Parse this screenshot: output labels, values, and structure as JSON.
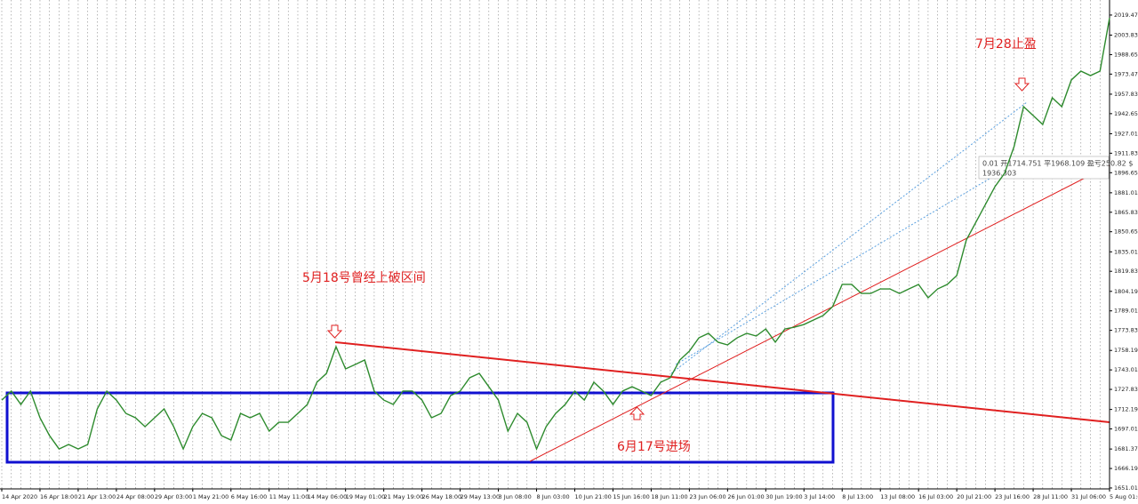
{
  "chart_data": {
    "type": "line",
    "categories": [
      "14 Apr 2020",
      null,
      null,
      null,
      "16 Apr 18:00",
      null,
      null,
      null,
      "21 Apr 13:00",
      null,
      null,
      null,
      "24 Apr 08:00",
      null,
      null,
      null,
      "29 Apr 03:00",
      null,
      null,
      null,
      "1 May 21:00",
      null,
      null,
      null,
      "6 May 16:00",
      null,
      null,
      null,
      "11 May 11:00",
      null,
      null,
      null,
      "14 May 06:00",
      null,
      null,
      null,
      "19 May 01:00",
      null,
      null,
      null,
      "21 May 19:00",
      null,
      null,
      null,
      "26 May 18:00",
      null,
      null,
      null,
      "29 May 13:00",
      null,
      null,
      null,
      "3 Jun 08:00",
      null,
      null,
      null,
      "8 Jun 03:00",
      null,
      null,
      null,
      "10 Jun 21:00",
      null,
      null,
      null,
      "15 Jun 16:00",
      null,
      null,
      null,
      "18 Jun 11:00",
      null,
      null,
      null,
      "23 Jun 06:00",
      null,
      null,
      null,
      "26 Jun 01:00",
      null,
      null,
      null,
      "30 Jun 19:00",
      null,
      null,
      null,
      "3 Jul 14:00",
      null,
      null,
      null,
      "8 Jul 13:00",
      null,
      null,
      null,
      "13 Jul 08:00",
      null,
      null,
      null,
      "16 Jul 03:00",
      null,
      null,
      null,
      "20 Jul 21:00",
      null,
      null,
      null,
      "23 Jul 16:00",
      null,
      null,
      null,
      "28 Jul 11:00",
      null,
      null,
      null,
      "31 Jul 06:00",
      null,
      null,
      null,
      "5 Aug 01:00"
    ],
    "series": [
      {
        "color": "#2e8b2e",
        "values": [
          1719.5,
          1726.5,
          1716.1,
          1726.5,
          1705.7,
          1691.8,
          1681.4,
          1684.9,
          1681.4,
          1684.9,
          1712.6,
          1726.5,
          1719.5,
          1709.1,
          1705.7,
          1698.8,
          1705.7,
          1712.6,
          1698.8,
          1681.4,
          1698.8,
          1709.1,
          1705.7,
          1691.8,
          1688.4,
          1709.1,
          1705.7,
          1709.1,
          1695.3,
          1702.2,
          1702.2,
          1709.1,
          1716.1,
          1733.4,
          1740.3,
          1761.1,
          1743.8,
          1747.2,
          1750.7,
          1726.5,
          1719.5,
          1716.1,
          1726.5,
          1726.5,
          1719.5,
          1705.7,
          1709.1,
          1723.0,
          1726.5,
          1736.9,
          1740.3,
          1729.9,
          1719.5,
          1695.3,
          1709.1,
          1702.2,
          1681.4,
          1698.8,
          1709.1,
          1716.1,
          1726.5,
          1719.5,
          1733.4,
          1726.5,
          1716.1,
          1726.5,
          1729.9,
          1726.5,
          1723.0,
          1733.4,
          1736.9,
          1750.7,
          1757.6,
          1768.0,
          1771.5,
          1764.6,
          1762.5,
          1768.0,
          1771.5,
          1769.4,
          1774.9,
          1764.6,
          1774.9,
          1776.3,
          1778.4,
          1781.9,
          1785.3,
          1792.3,
          1809.6,
          1809.6,
          1802.6,
          1802.6,
          1806.1,
          1806.1,
          1802.6,
          1806.1,
          1809.6,
          1799.2,
          1806.1,
          1809.6,
          1816.5,
          1844.2,
          1858.0,
          1871.9,
          1885.8,
          1896.1,
          1916.9,
          1948.1,
          1941.2,
          1934.2,
          1955.0,
          1948.1,
          1968.9,
          1975.8,
          1972.3,
          1975.8,
          2017.3
        ]
      }
    ],
    "ylim": [
      1650.3,
      2031.2
    ],
    "yticks": [
      {
        "value": 2019.47,
        "label": "2019.470"
      },
      {
        "value": 2003.83,
        "label": "2003.830"
      },
      {
        "value": 1988.65,
        "label": "1988.650"
      },
      {
        "value": 1973.47,
        "label": "1973.470"
      },
      {
        "value": 1957.83,
        "label": "1957.830"
      },
      {
        "value": 1942.65,
        "label": "1942.650"
      },
      {
        "value": 1927.01,
        "label": "1927.010"
      },
      {
        "value": 1911.83,
        "label": "1911.830"
      },
      {
        "value": 1896.65,
        "label": "1896.650"
      },
      {
        "value": 1881.01,
        "label": "1881.010"
      },
      {
        "value": 1865.83,
        "label": "1865.830"
      },
      {
        "value": 1850.65,
        "label": "1850.650"
      },
      {
        "value": 1835.01,
        "label": "1835.010"
      },
      {
        "value": 1819.83,
        "label": "1819.830"
      },
      {
        "value": 1804.19,
        "label": "1804.190"
      },
      {
        "value": 1789.01,
        "label": "1789.010"
      },
      {
        "value": 1773.83,
        "label": "1773.830"
      },
      {
        "value": 1758.19,
        "label": "1758.190"
      },
      {
        "value": 1743.01,
        "label": "1743.010"
      },
      {
        "value": 1727.83,
        "label": "1727.830"
      },
      {
        "value": 1712.19,
        "label": "1712.190"
      },
      {
        "value": 1697.01,
        "label": "1697.010"
      },
      {
        "value": 1681.37,
        "label": "1681.370"
      },
      {
        "value": 1666.19,
        "label": "1666.190"
      },
      {
        "value": 1651.01,
        "label": "1651.010"
      }
    ],
    "grid": true,
    "annotations": [
      "5月18号曾经上破区间",
      "6月17号进场",
      "7月28止盈"
    ],
    "tooltip": [
      "0.01 开1714.751 平1968.109 盈亏250.82 $",
      "1936.303"
    ]
  }
}
